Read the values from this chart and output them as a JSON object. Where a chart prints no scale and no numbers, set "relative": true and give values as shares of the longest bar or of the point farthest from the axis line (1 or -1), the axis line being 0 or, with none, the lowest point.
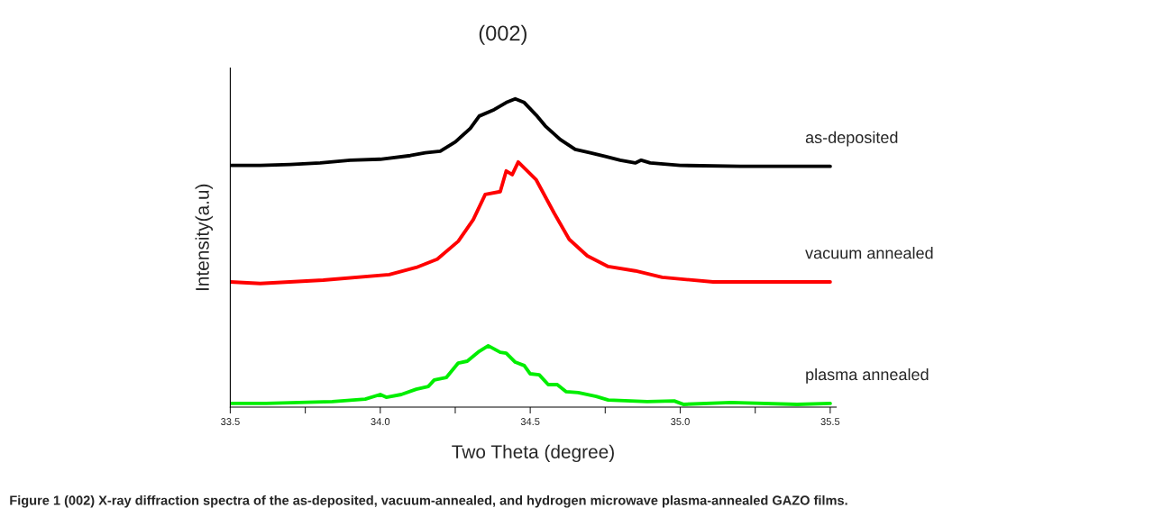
{
  "chart_data": {
    "type": "line",
    "title": "(002)",
    "xlabel": "Two Theta (degree)",
    "ylabel": "Intensity(a.u)",
    "relative": true,
    "xlim": [
      33.5,
      35.52
    ],
    "xticks": [
      33.5,
      {
        "value": 33.75,
        "label": null
      },
      {
        "value": 34,
        "label": "34.0"
      },
      {
        "value": 34.25,
        "label": null
      },
      34.5,
      {
        "value": 34.75,
        "label": null
      },
      {
        "value": 35,
        "label": "35.0"
      },
      {
        "value": 35.25,
        "label": null
      },
      35.5
    ],
    "grid": false,
    "legend": false,
    "marker": "none",
    "line_style": "solid",
    "series": [
      {
        "name": "as-deposited",
        "color": "#000000",
        "x": [
          33.5,
          33.6,
          33.7,
          33.8,
          33.9,
          34.0,
          34.1,
          34.15,
          34.2,
          34.25,
          34.3,
          34.33,
          34.38,
          34.42,
          34.45,
          34.48,
          34.52,
          34.55,
          34.6,
          34.65,
          34.7,
          34.75,
          34.8,
          34.85,
          34.87,
          34.9,
          35.0,
          35.2,
          35.5
        ],
        "values": [
          0.784,
          0.784,
          0.787,
          0.792,
          0.801,
          0.804,
          0.816,
          0.825,
          0.83,
          0.86,
          0.904,
          0.944,
          0.965,
          0.988,
          1,
          0.988,
          0.947,
          0.912,
          0.868,
          0.836,
          0.825,
          0.813,
          0.801,
          0.792,
          0.801,
          0.792,
          0.784,
          0.781,
          0.781
        ]
      },
      {
        "name": "vacuum annealed",
        "color": "#ff0000",
        "x": [
          33.5,
          33.6,
          33.81,
          34.03,
          34.12,
          34.19,
          34.26,
          34.31,
          34.35,
          34.4,
          34.42,
          34.44,
          34.46,
          34.52,
          34.58,
          34.63,
          34.69,
          34.76,
          34.85,
          34.94,
          35.11,
          35.5
        ],
        "values": [
          0.406,
          0.401,
          0.412,
          0.43,
          0.453,
          0.48,
          0.538,
          0.608,
          0.69,
          0.699,
          0.766,
          0.754,
          0.795,
          0.737,
          0.629,
          0.544,
          0.491,
          0.456,
          0.442,
          0.421,
          0.406,
          0.406
        ]
      },
      {
        "name": "plasma annealed",
        "color": "#00ee00",
        "x": [
          33.5,
          33.62,
          33.84,
          33.95,
          34.0,
          34.02,
          34.07,
          34.12,
          34.16,
          34.18,
          34.22,
          34.26,
          34.29,
          34.33,
          34.36,
          34.4,
          34.42,
          34.45,
          34.48,
          34.5,
          34.53,
          34.56,
          34.59,
          34.62,
          34.66,
          34.72,
          34.76,
          34.89,
          34.98,
          35.01,
          35.17,
          35.39,
          35.5
        ],
        "values": [
          0.012,
          0.012,
          0.018,
          0.026,
          0.041,
          0.032,
          0.041,
          0.058,
          0.067,
          0.088,
          0.096,
          0.143,
          0.149,
          0.181,
          0.199,
          0.178,
          0.175,
          0.146,
          0.135,
          0.108,
          0.105,
          0.073,
          0.073,
          0.05,
          0.047,
          0.035,
          0.023,
          0.018,
          0.02,
          0.009,
          0.015,
          0.009,
          0.012
        ]
      }
    ],
    "annotations": [
      "Figure 1 (002) X-ray diffraction spectra of the as-deposited, vacuum-annealed, and hydrogen microwave plasma-annealed GAZO films."
    ]
  }
}
